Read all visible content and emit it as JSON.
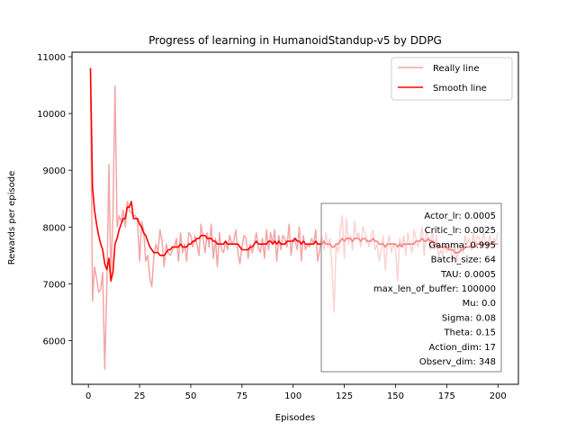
{
  "chart_data": {
    "type": "line",
    "title": "Progress of learning in HumanoidStandup-v5 by DDPG",
    "xlabel": "Episodes",
    "ylabel": "Rewards per episode",
    "xlim": [
      -8,
      210
    ],
    "ylim": [
      5230,
      11080
    ],
    "xticks": [
      0,
      25,
      50,
      75,
      100,
      125,
      150,
      175,
      200
    ],
    "yticks": [
      6000,
      7000,
      8000,
      9000,
      10000,
      11000
    ],
    "grid": false,
    "legend_position": "top-right",
    "series": [
      {
        "name": "Really line",
        "color": "#f4a6a6",
        "x": [
          1,
          2,
          3,
          4,
          5,
          6,
          7,
          8,
          9,
          10,
          11,
          12,
          13,
          14,
          15,
          16,
          17,
          18,
          19,
          20,
          21,
          22,
          23,
          24,
          25,
          26,
          27,
          28,
          29,
          30,
          31,
          32,
          33,
          34,
          35,
          36,
          37,
          38,
          39,
          40,
          41,
          42,
          43,
          44,
          45,
          46,
          47,
          48,
          49,
          50,
          51,
          52,
          53,
          54,
          55,
          56,
          57,
          58,
          59,
          60,
          61,
          62,
          63,
          64,
          65,
          66,
          67,
          68,
          69,
          70,
          71,
          72,
          73,
          74,
          75,
          76,
          77,
          78,
          79,
          80,
          81,
          82,
          83,
          84,
          85,
          86,
          87,
          88,
          89,
          90,
          91,
          92,
          93,
          94,
          95,
          96,
          97,
          98,
          99,
          100,
          101,
          102,
          103,
          104,
          105,
          106,
          107,
          108,
          109,
          110,
          111,
          112,
          113,
          114,
          115,
          116,
          117,
          118,
          119,
          120,
          121,
          122,
          123,
          124,
          125,
          126,
          127,
          128,
          129,
          130,
          131,
          132,
          133,
          134,
          135,
          136,
          137,
          138,
          139,
          140,
          141,
          142,
          143,
          144,
          145,
          146,
          147,
          148,
          149,
          150,
          151,
          152,
          153,
          154,
          155,
          156,
          157,
          158,
          159,
          160,
          161,
          162,
          163,
          164,
          165,
          166,
          167,
          168,
          169,
          170,
          171,
          172,
          173,
          174,
          175,
          176,
          177,
          178,
          179,
          180,
          181,
          182,
          183,
          184,
          185,
          186,
          187,
          188,
          189,
          190,
          191,
          192,
          193,
          194,
          195,
          196,
          197,
          198,
          199,
          200
        ],
        "y": [
          10800,
          6700,
          7300,
          7100,
          6850,
          6900,
          7200,
          5500,
          6950,
          9100,
          7100,
          8200,
          10480,
          8000,
          8200,
          8100,
          8300,
          8000,
          8450,
          8300,
          8250,
          8200,
          8200,
          8100,
          7400,
          8100,
          7950,
          7400,
          7500,
          7100,
          6950,
          7500,
          7700,
          7550,
          7950,
          7750,
          7300,
          7700,
          7550,
          7500,
          7600,
          7650,
          7800,
          7400,
          7900,
          7550,
          7700,
          7400,
          7900,
          7850,
          7650,
          7850,
          7700,
          7500,
          8050,
          7800,
          7550,
          7900,
          7650,
          8050,
          7450,
          7800,
          7300,
          7900,
          7600,
          7550,
          7750,
          7600,
          7850,
          7700,
          7750,
          7950,
          7550,
          7350,
          7650,
          7850,
          7800,
          7450,
          7700,
          7550,
          7700,
          7900,
          7650,
          7550,
          7800,
          7450,
          7950,
          7600,
          7900,
          7700,
          7950,
          7400,
          7850,
          7600,
          7850,
          7800,
          7650,
          8050,
          7500,
          7800,
          7750,
          7600,
          8000,
          7400,
          7850,
          7600,
          7700,
          7650,
          7800,
          7700,
          7950,
          7400,
          7600,
          7850,
          7600,
          7900,
          7650,
          7800,
          7250,
          6500,
          7700,
          7550,
          7950,
          8200,
          7450,
          8150,
          7700,
          7850,
          7600,
          8100,
          7800,
          7900,
          7650,
          8000,
          7900,
          7800,
          7650,
          7850,
          7950,
          7600,
          7700,
          7400,
          7600,
          7850,
          7250,
          7700,
          7850,
          7550,
          7700,
          7600,
          7050,
          7800,
          7650,
          7850,
          7500,
          7900,
          7700,
          7550,
          7950,
          7800,
          7650,
          7800,
          8000,
          7500,
          7950,
          7800,
          7600,
          7950,
          7600,
          7850,
          7450,
          7600,
          7500,
          7700,
          7550,
          7700,
          7600,
          7400,
          7650,
          7400,
          7700,
          7600,
          7550,
          7850,
          7700,
          7800,
          7600,
          7900,
          7650,
          7850,
          7800,
          7650,
          7900,
          7750,
          7600,
          7850,
          7700,
          7800,
          7750,
          7900
        ]
      },
      {
        "name": "Smooth line",
        "color": "#ff0000",
        "x": [
          1,
          2,
          3,
          4,
          5,
          6,
          7,
          8,
          9,
          10,
          11,
          12,
          13,
          14,
          15,
          16,
          17,
          18,
          19,
          20,
          21,
          22,
          23,
          24,
          25,
          26,
          27,
          28,
          29,
          30,
          31,
          32,
          33,
          34,
          35,
          36,
          37,
          38,
          39,
          40,
          41,
          42,
          43,
          44,
          45,
          46,
          47,
          48,
          49,
          50,
          51,
          52,
          53,
          54,
          55,
          56,
          57,
          58,
          59,
          60,
          61,
          62,
          63,
          64,
          65,
          66,
          67,
          68,
          69,
          70,
          71,
          72,
          73,
          74,
          75,
          76,
          77,
          78,
          79,
          80,
          81,
          82,
          83,
          84,
          85,
          86,
          87,
          88,
          89,
          90,
          91,
          92,
          93,
          94,
          95,
          96,
          97,
          98,
          99,
          100,
          101,
          102,
          103,
          104,
          105,
          106,
          107,
          108,
          109,
          110,
          111,
          112,
          113,
          114,
          115,
          116,
          117,
          118,
          119,
          120,
          121,
          122,
          123,
          124,
          125,
          126,
          127,
          128,
          129,
          130,
          131,
          132,
          133,
          134,
          135,
          136,
          137,
          138,
          139,
          140,
          141,
          142,
          143,
          144,
          145,
          146,
          147,
          148,
          149,
          150,
          151,
          152,
          153,
          154,
          155,
          156,
          157,
          158,
          159,
          160,
          161,
          162,
          163,
          164,
          165,
          166,
          167,
          168,
          169,
          170,
          171,
          172,
          173,
          174,
          175,
          176,
          177,
          178,
          179,
          180,
          181,
          182,
          183,
          184,
          185,
          186,
          187,
          188,
          189,
          190,
          191,
          192,
          193,
          194,
          195,
          196,
          197,
          198,
          199,
          200
        ],
        "y": [
          10800,
          8700,
          8300,
          8050,
          7850,
          7700,
          7600,
          7350,
          7250,
          7450,
          7050,
          7200,
          7700,
          7800,
          7950,
          8050,
          8150,
          8150,
          8350,
          8350,
          8450,
          8150,
          8150,
          8150,
          8050,
          8000,
          7900,
          7850,
          7750,
          7650,
          7600,
          7550,
          7550,
          7550,
          7500,
          7500,
          7500,
          7550,
          7600,
          7600,
          7650,
          7650,
          7650,
          7650,
          7700,
          7650,
          7650,
          7650,
          7700,
          7700,
          7750,
          7750,
          7800,
          7800,
          7850,
          7850,
          7850,
          7800,
          7800,
          7800,
          7750,
          7750,
          7700,
          7700,
          7700,
          7700,
          7750,
          7700,
          7700,
          7700,
          7700,
          7700,
          7700,
          7650,
          7600,
          7600,
          7600,
          7600,
          7650,
          7650,
          7700,
          7750,
          7700,
          7700,
          7700,
          7700,
          7700,
          7750,
          7750,
          7700,
          7750,
          7700,
          7750,
          7700,
          7700,
          7700,
          7750,
          7750,
          7750,
          7750,
          7800,
          7750,
          7750,
          7700,
          7750,
          7700,
          7700,
          7700,
          7700,
          7700,
          7750,
          7700,
          7700,
          7700,
          7750,
          7700,
          7700,
          7700,
          7650,
          7650,
          7700,
          7700,
          7750,
          7800,
          7750,
          7800,
          7800,
          7800,
          7750,
          7800,
          7800,
          7800,
          7750,
          7800,
          7800,
          7750,
          7750,
          7750,
          7800,
          7750,
          7750,
          7700,
          7700,
          7700,
          7650,
          7700,
          7700,
          7700,
          7700,
          7700,
          7650,
          7700,
          7650,
          7700,
          7700,
          7700,
          7700,
          7700,
          7700,
          7750,
          7750,
          7750,
          7800,
          7750,
          7750,
          7800,
          7750,
          7750,
          7700,
          7700,
          7650,
          7650,
          7650,
          7650,
          7650,
          7600,
          7600,
          7600,
          7550,
          7550,
          7550,
          7600,
          7600,
          7650,
          7650,
          7650,
          7650,
          7650,
          7650,
          7700,
          7700,
          7700,
          7700,
          7700,
          7700,
          7700,
          7700,
          7700,
          7700,
          7700
        ]
      }
    ],
    "info_box": [
      "Actor_lr: 0.0005",
      "Critic_lr: 0.0025",
      "Gamma: 0.995",
      "Batch_size: 64",
      "TAU: 0.0005",
      "max_len_of_buffer: 100000",
      "Mu: 0.0",
      "Sigma: 0.08",
      "Theta: 0.15",
      "Action_dim: 17",
      "Observ_dim: 348"
    ]
  }
}
